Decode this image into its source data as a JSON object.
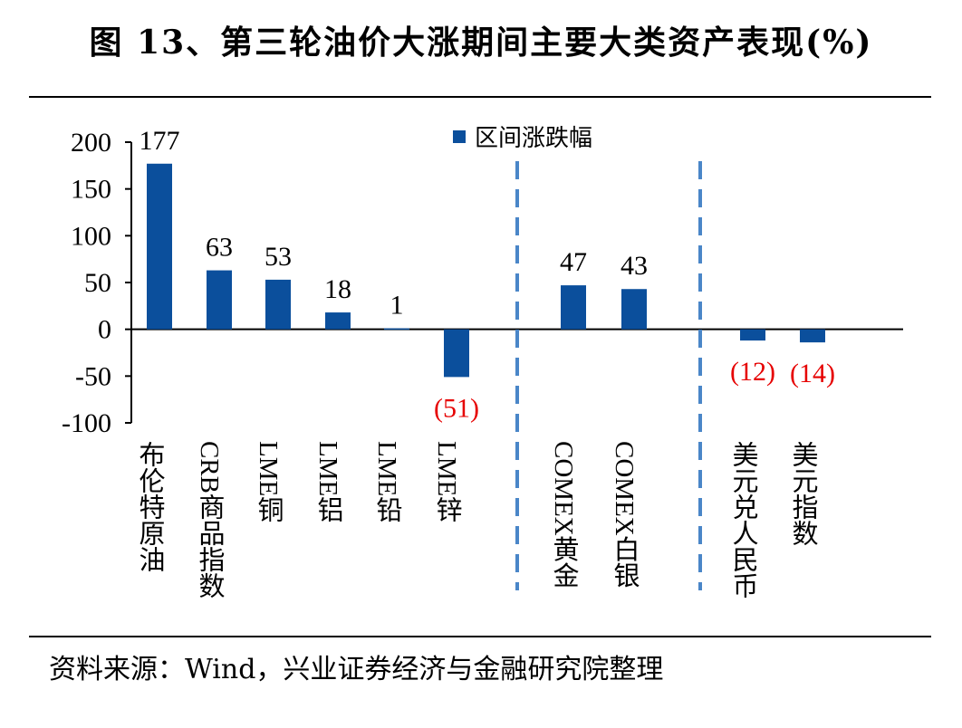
{
  "title": "图 13、第三轮油价大涨期间主要大类资产表现(%)",
  "source": "资料来源：Wind，兴业证券经济与金融研究院整理",
  "chart_data": {
    "type": "bar",
    "categories": [
      "布伦特原油",
      "CRB商品指数",
      "LME铜",
      "LME铝",
      "LME铅",
      "LME锌",
      "COMEX黄金",
      "COMEX白银",
      "美元兑人民币",
      "美元指数"
    ],
    "series": [
      {
        "name": "区间涨跌幅",
        "values": [
          177,
          63,
          53,
          18,
          1,
          -51,
          47,
          43,
          -12,
          -14
        ]
      }
    ],
    "data_labels": [
      "177",
      "63",
      "53",
      "18",
      "1",
      "(51)",
      "47",
      "43",
      "(12)",
      "(14)"
    ],
    "yticks": [
      "200",
      "150",
      "100",
      "50",
      "0",
      "-50",
      "-100"
    ],
    "ylim": [
      -100,
      200
    ],
    "xlabel": "",
    "ylabel": "",
    "grid": false,
    "legend": "top-center",
    "colors": {
      "bar": "#0b4f9c",
      "negative_label": "#e60000",
      "positive_label": "#000000",
      "divider": "#4a86c8"
    }
  }
}
